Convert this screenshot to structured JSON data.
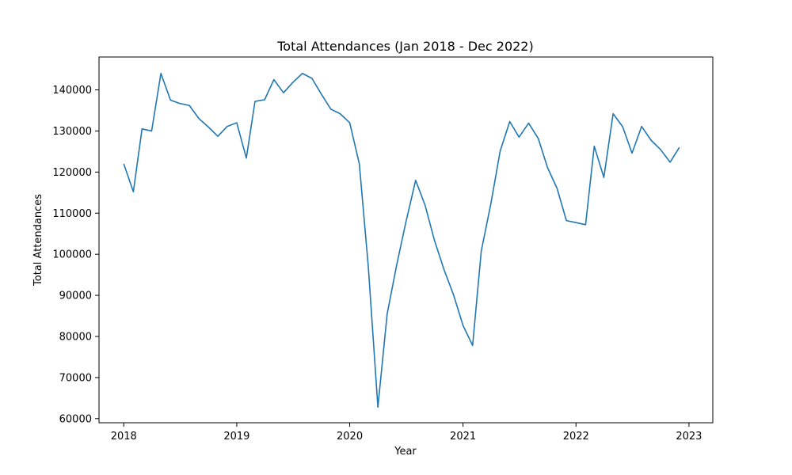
{
  "chart_data": {
    "type": "line",
    "title": "Total Attendances (Jan 2018 - Dec 2022)",
    "xlabel": "Year",
    "ylabel": "Total Attendances",
    "xlim": [
      "2017-10-13",
      "2023-03-19"
    ],
    "ylim": [
      59000,
      148000
    ],
    "x_ticks": [
      {
        "value": "2018-01-01",
        "label": "2018"
      },
      {
        "value": "2019-01-01",
        "label": "2019"
      },
      {
        "value": "2020-01-01",
        "label": "2020"
      },
      {
        "value": "2021-01-01",
        "label": "2021"
      },
      {
        "value": "2022-01-01",
        "label": "2022"
      },
      {
        "value": "2023-01-01",
        "label": "2023"
      }
    ],
    "y_ticks": [
      60000,
      70000,
      80000,
      90000,
      100000,
      110000,
      120000,
      130000,
      140000
    ],
    "y_tick_labels": [
      "60000",
      "70000",
      "80000",
      "90000",
      "100000",
      "110000",
      "120000",
      "130000",
      "140000"
    ],
    "grid": false,
    "series": [
      {
        "color": "#1f77b4",
        "x": [
          "2018-01",
          "2018-02",
          "2018-03",
          "2018-04",
          "2018-05",
          "2018-06",
          "2018-07",
          "2018-08",
          "2018-09",
          "2018-10",
          "2018-11",
          "2018-12",
          "2019-01",
          "2019-02",
          "2019-03",
          "2019-04",
          "2019-05",
          "2019-06",
          "2019-07",
          "2019-08",
          "2019-09",
          "2019-10",
          "2019-11",
          "2019-12",
          "2020-01",
          "2020-02",
          "2020-03",
          "2020-04",
          "2020-05",
          "2020-06",
          "2020-07",
          "2020-08",
          "2020-09",
          "2020-10",
          "2020-11",
          "2020-12",
          "2021-01",
          "2021-02",
          "2021-03",
          "2021-04",
          "2021-05",
          "2021-06",
          "2021-07",
          "2021-08",
          "2021-09",
          "2021-10",
          "2021-11",
          "2021-12",
          "2022-01",
          "2022-02",
          "2022-03",
          "2022-04",
          "2022-05",
          "2022-06",
          "2022-07",
          "2022-08",
          "2022-09",
          "2022-10",
          "2022-11",
          "2022-12"
        ],
        "y": [
          122000,
          115200,
          130500,
          130000,
          144000,
          137500,
          136700,
          136200,
          133000,
          131000,
          128700,
          131100,
          132000,
          123400,
          137200,
          137600,
          142500,
          139300,
          141800,
          144000,
          142800,
          139000,
          135300,
          134200,
          132000,
          122000,
          97000,
          62800,
          85500,
          97500,
          108000,
          118000,
          111800,
          103300,
          96200,
          90200,
          82700,
          77800,
          100800,
          112300,
          125100,
          132300,
          128500,
          131900,
          128200,
          121100,
          116000,
          108200,
          107700,
          107200,
          126300,
          118700,
          134200,
          131000,
          124600,
          131100,
          127700,
          125500,
          122400,
          126000
        ]
      }
    ]
  }
}
